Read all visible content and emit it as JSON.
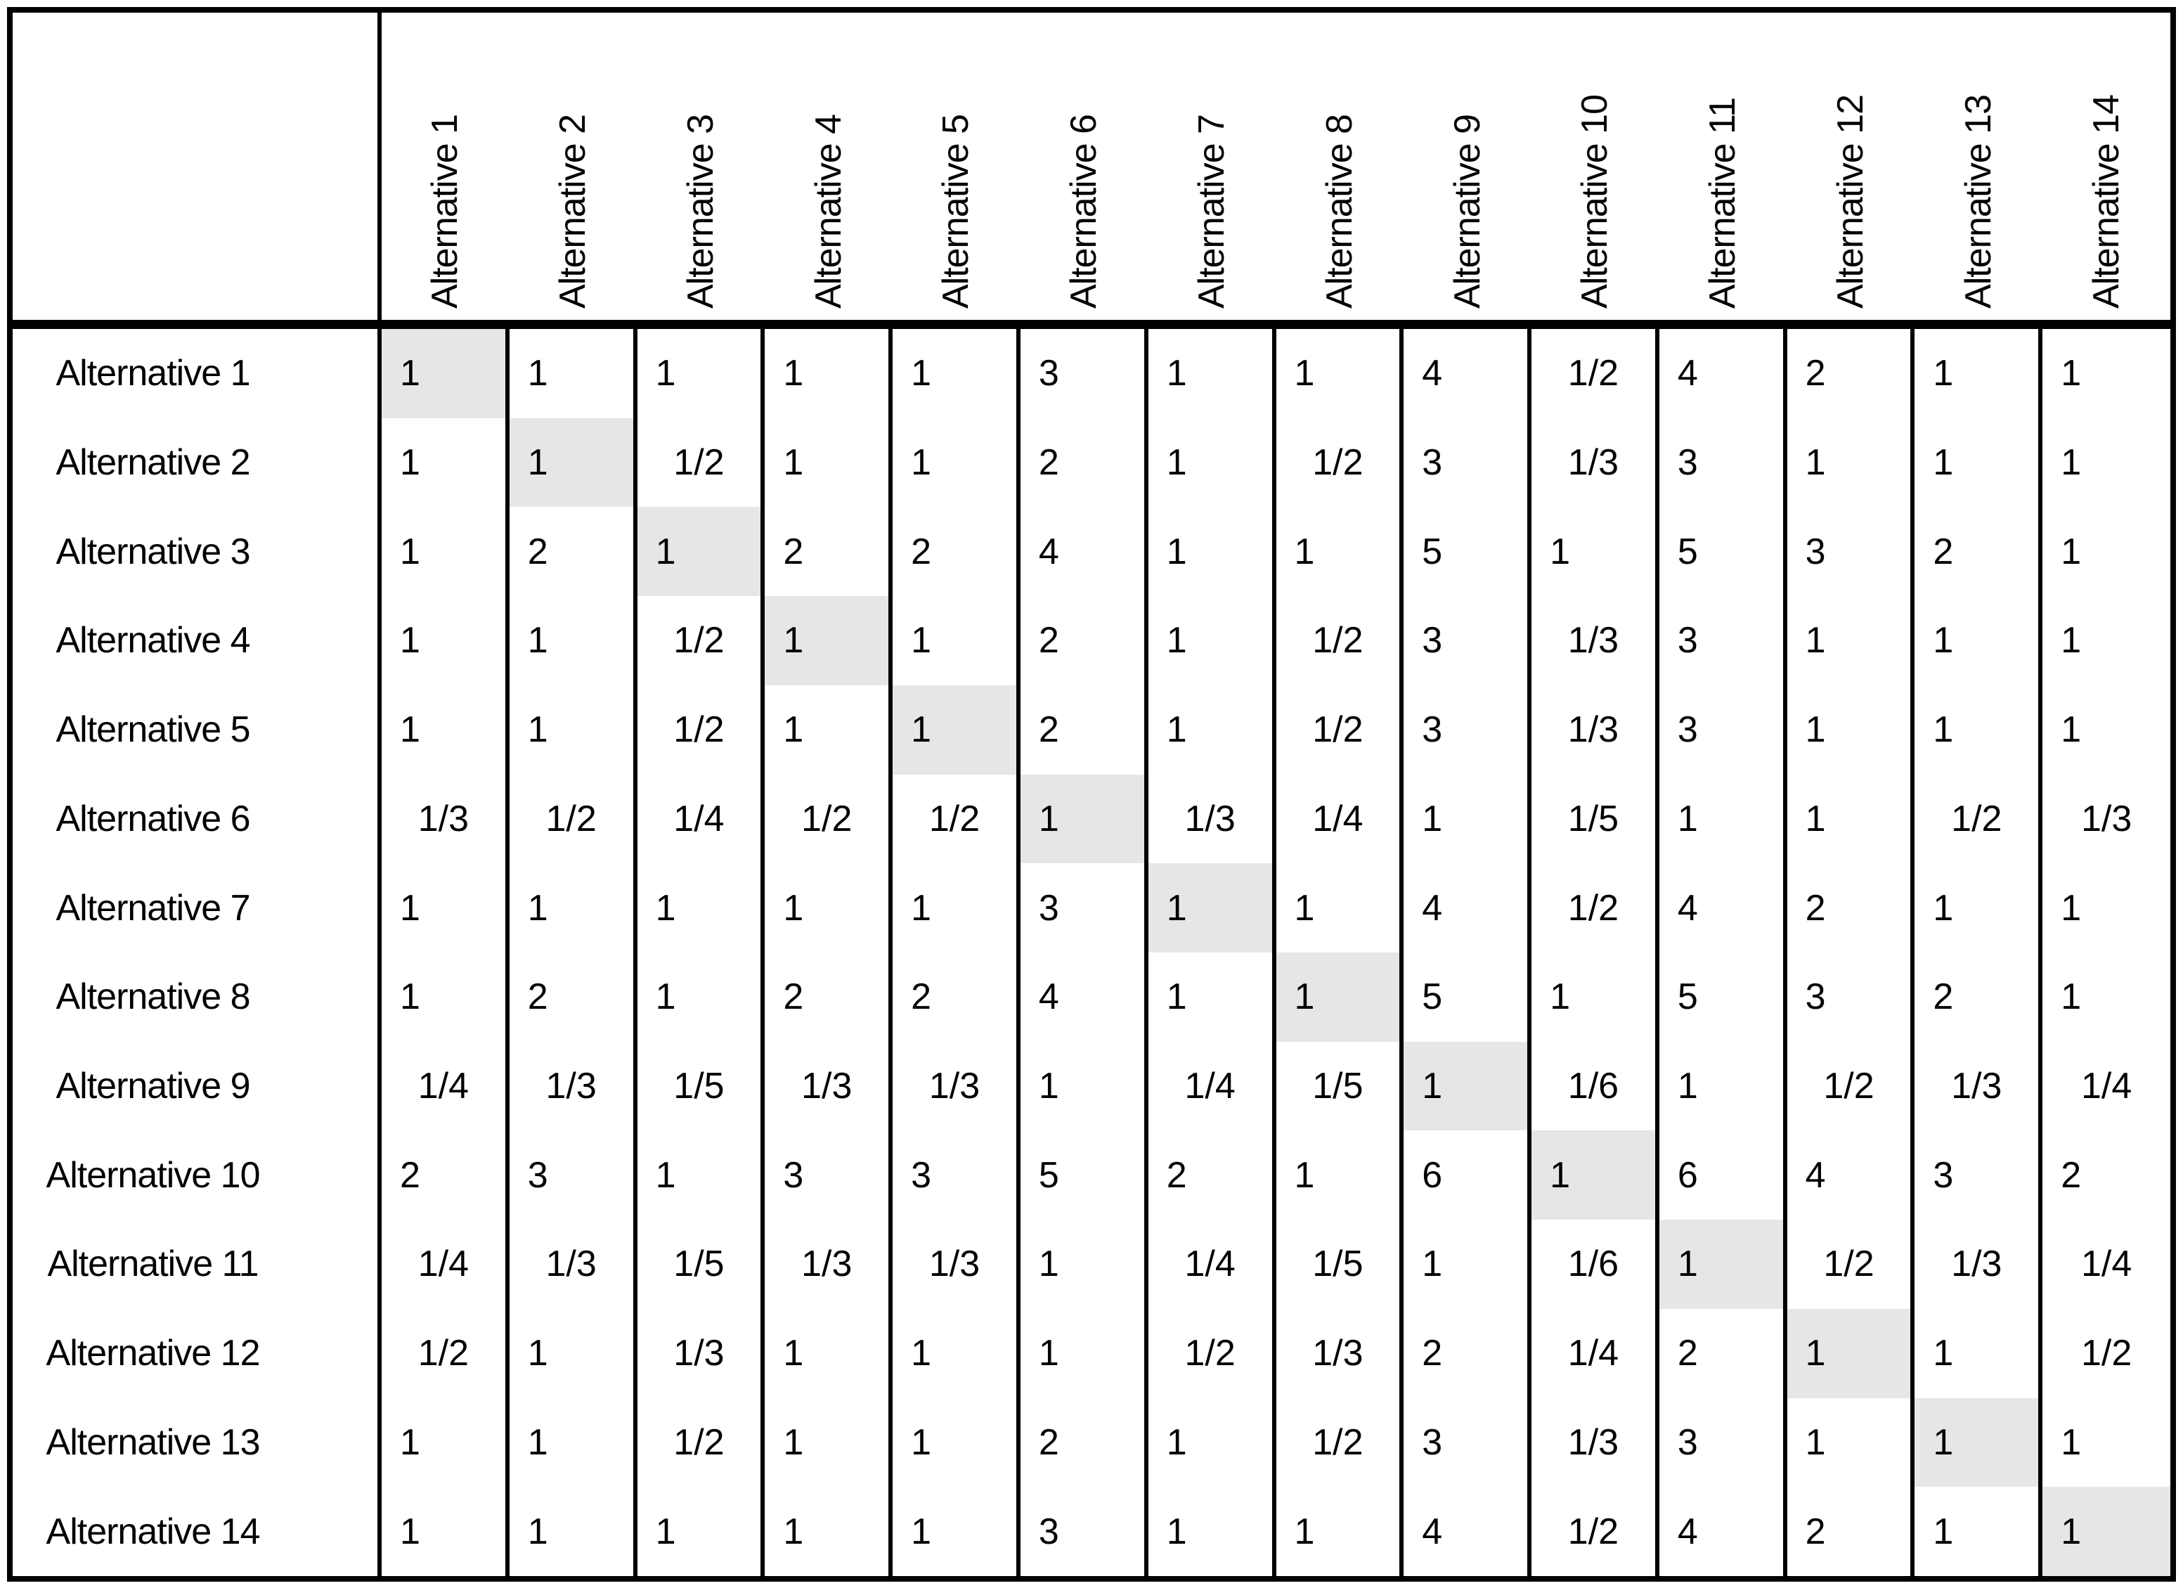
{
  "table": {
    "corner_label": "",
    "column_headers": [
      "Alternative 1",
      "Alternative 2",
      "Alternative 3",
      "Alternative 4",
      "Alternative 5",
      "Alternative 6",
      "Alternative 7",
      "Alternative 8",
      "Alternative 9",
      "Alternative 10",
      "Alternative 11",
      "Alternative 12",
      "Alternative 13",
      "Alternative 14"
    ],
    "row_headers": [
      "Alternative 1",
      "Alternative 2",
      "Alternative 3",
      "Alternative 4",
      "Alternative 5",
      "Alternative 6",
      "Alternative 7",
      "Alternative 8",
      "Alternative 9",
      "Alternative 10",
      "Alternative 11",
      "Alternative 12",
      "Alternative 13",
      "Alternative 14"
    ],
    "rows": [
      [
        "1",
        "1",
        "1",
        "1",
        "1",
        "3",
        "1",
        "1",
        "4",
        "1/2",
        "4",
        "2",
        "1",
        "1"
      ],
      [
        "1",
        "1",
        "1/2",
        "1",
        "1",
        "2",
        "1",
        "1/2",
        "3",
        "1/3",
        "3",
        "1",
        "1",
        "1"
      ],
      [
        "1",
        "2",
        "1",
        "2",
        "2",
        "4",
        "1",
        "1",
        "5",
        "1",
        "5",
        "3",
        "2",
        "1"
      ],
      [
        "1",
        "1",
        "1/2",
        "1",
        "1",
        "2",
        "1",
        "1/2",
        "3",
        "1/3",
        "3",
        "1",
        "1",
        "1"
      ],
      [
        "1",
        "1",
        "1/2",
        "1",
        "1",
        "2",
        "1",
        "1/2",
        "3",
        "1/3",
        "3",
        "1",
        "1",
        "1"
      ],
      [
        "1/3",
        "1/2",
        "1/4",
        "1/2",
        "1/2",
        "1",
        "1/3",
        "1/4",
        "1",
        "1/5",
        "1",
        "1",
        "1/2",
        "1/3"
      ],
      [
        "1",
        "1",
        "1",
        "1",
        "1",
        "3",
        "1",
        "1",
        "4",
        "1/2",
        "4",
        "2",
        "1",
        "1"
      ],
      [
        "1",
        "2",
        "1",
        "2",
        "2",
        "4",
        "1",
        "1",
        "5",
        "1",
        "5",
        "3",
        "2",
        "1"
      ],
      [
        "1/4",
        "1/3",
        "1/5",
        "1/3",
        "1/3",
        "1",
        "1/4",
        "1/5",
        "1",
        "1/6",
        "1",
        "1/2",
        "1/3",
        "1/4"
      ],
      [
        "2",
        "3",
        "1",
        "3",
        "3",
        "5",
        "2",
        "1",
        "6",
        "1",
        "6",
        "4",
        "3",
        "2"
      ],
      [
        "1/4",
        "1/3",
        "1/5",
        "1/3",
        "1/3",
        "1",
        "1/4",
        "1/5",
        "1",
        "1/6",
        "1",
        "1/2",
        "1/3",
        "1/4"
      ],
      [
        "1/2",
        "1",
        "1/3",
        "1",
        "1",
        "1",
        "1/2",
        "1/3",
        "2",
        "1/4",
        "2",
        "1",
        "1",
        "1/2"
      ],
      [
        "1",
        "1",
        "1/2",
        "1",
        "1",
        "2",
        "1",
        "1/2",
        "3",
        "1/3",
        "3",
        "1",
        "1",
        "1"
      ],
      [
        "1",
        "1",
        "1",
        "1",
        "1",
        "3",
        "1",
        "1",
        "4",
        "1/2",
        "4",
        "2",
        "1",
        "1"
      ]
    ],
    "diagonal_highlighted": true
  },
  "colors": {
    "background": "#ffffff",
    "border": "#000000",
    "text": "#000000",
    "diagonal_fill": "#e6e6e6"
  }
}
